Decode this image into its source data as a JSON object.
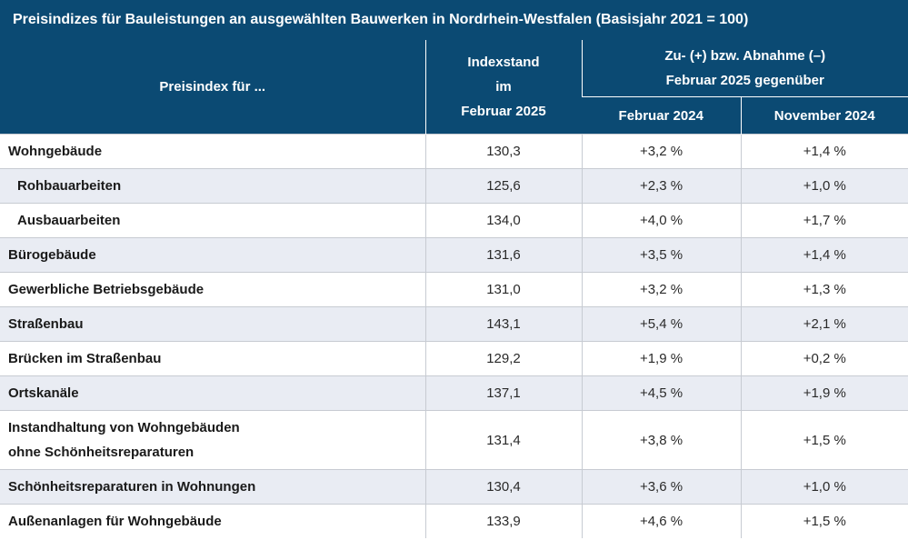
{
  "title": "Preisindizes für Bauleistungen an ausgewählten Bauwerken in Nordrhein-Westfalen (Basisjahr 2021 = 100)",
  "header": {
    "col_label": "Preisindex für ...",
    "index_line1": "Indexstand",
    "index_line2": "im",
    "index_line3": "Februar 2025",
    "change_line1": "Zu- (+) bzw. Abnahme (–)",
    "change_line2": "Februar 2025 gegenüber",
    "sub_feb": "Februar 2024",
    "sub_nov": "November 2024"
  },
  "rows": [
    {
      "label": "Wohngebäude",
      "index": "130,3",
      "feb": "+3,2 %",
      "nov": "+1,4 %"
    },
    {
      "label": "Rohbauarbeiten",
      "index": "125,6",
      "feb": "+2,3 %",
      "nov": "+1,0 %"
    },
    {
      "label": "Ausbauarbeiten",
      "index": "134,0",
      "feb": "+4,0 %",
      "nov": "+1,7 %"
    },
    {
      "label": "Bürogebäude",
      "index": "131,6",
      "feb": "+3,5 %",
      "nov": "+1,4 %"
    },
    {
      "label": "Gewerbliche Betriebsgebäude",
      "index": "131,0",
      "feb": "+3,2 %",
      "nov": "+1,3 %"
    },
    {
      "label": "Straßenbau",
      "index": "143,1",
      "feb": "+5,4 %",
      "nov": "+2,1 %"
    },
    {
      "label": "Brücken im Straßenbau",
      "index": "129,2",
      "feb": "+1,9 %",
      "nov": "+0,2 %"
    },
    {
      "label": "Ortskanäle",
      "index": "137,1",
      "feb": "+4,5 %",
      "nov": "+1,9 %"
    },
    {
      "label_line1": "Instandhaltung von Wohngebäuden",
      "label_line2": "ohne Schönheitsreparaturen",
      "index": "131,4",
      "feb": "+3,8 %",
      "nov": "+1,5 %"
    },
    {
      "label": "Schönheitsreparaturen in Wohnungen",
      "index": "130,4",
      "feb": "+3,6 %",
      "nov": "+1,0 %"
    },
    {
      "label": "Außenanlagen für Wohngebäude",
      "index": "133,9",
      "feb": "+4,6 %",
      "nov": "+1,5 %"
    }
  ]
}
